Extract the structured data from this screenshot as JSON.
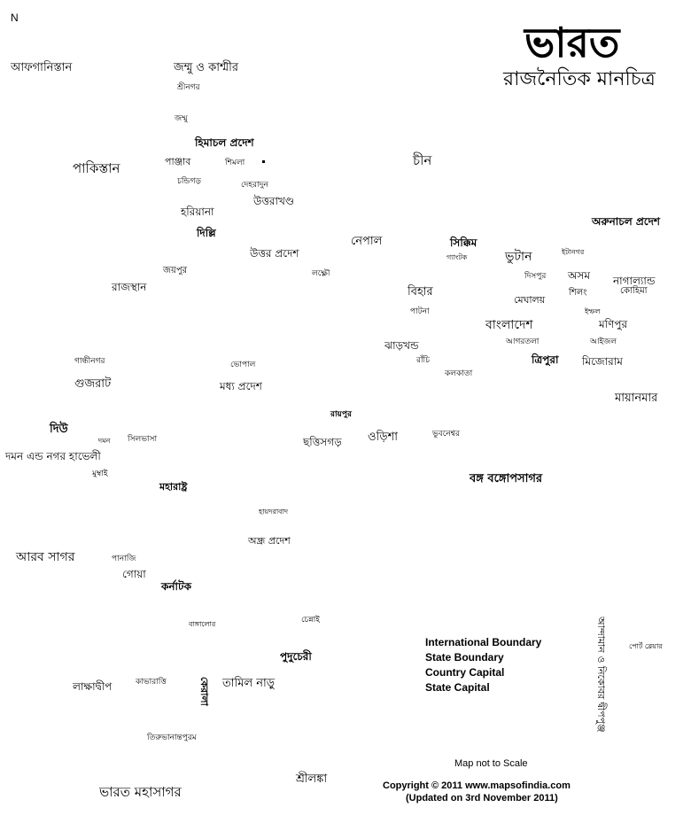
{
  "compass": "N",
  "title": "ভারত",
  "subtitle": "রাজনৈতিক মানচিত্র",
  "labels": {
    "afghanistan": "আফগানিস্তান",
    "jammu_kashmir": "জম্মু ও কাশ্মীর",
    "srinagar": "শ্রীনগর",
    "jammu": "জম্মু",
    "himachal": "হিমাচল প্রদেশ",
    "pakistan": "পাকিস্তান",
    "punjab": "পাঞ্জাব",
    "shimla": "শিমলা",
    "china": "চীন",
    "chandigarh": "চন্ডিগড়",
    "dehradun": "দেহরাদুন",
    "uttarakhand": "উত্তরাখণ্ড",
    "haryana": "হরিয়ানা",
    "delhi": "দিল্লি",
    "arunachal": "অরুনাচল প্রদেশ",
    "nepal": "নেপাল",
    "sikkim": "সিক্কিম",
    "up": "উত্তর প্রদেশ",
    "gangtok": "গ্যাংটক",
    "bhutan": "ভুটান",
    "itanagar": "ইটানগর",
    "jaipur": "জয়পুর",
    "lucknow": "লক্ষ্ণৌ",
    "dispur": "দিসপুর",
    "assam": "অসম",
    "nagaland": "নাগাল্যান্ড",
    "rajasthan": "রাজস্থান",
    "bihar": "বিহার",
    "meghalaya": "মেঘালয়",
    "shillong": "শিলং",
    "kohima": "কোহিমা",
    "patna": "পাটনা",
    "imphal": "ইম্ফল",
    "bangladesh": "বাংলাদেশ",
    "manipur": "মণিপুর",
    "agartala": "আগরতলা",
    "aizawl": "আইজল",
    "jharkhand": "ঝাড়খন্ড",
    "gandhinagar": "গান্ধীনগর",
    "bhopal": "ভোপাল",
    "ranchi": "রাঁচি",
    "tripura": "ত্রিপুরা",
    "mizoram": "মিজোরাম",
    "kolkata": "কলকাতা",
    "gujarat": "গুজরাট",
    "mp": "মধ্য প্রদেশ",
    "myanmar": "মায়ানমার",
    "raipur": "রায়পুর",
    "diu": "দিউ",
    "daman": "দমন",
    "silvassa": "সিলভাসা",
    "chhattisgarh": "ছত্তিসগড়",
    "odisha": "ওড়িশা",
    "bhubaneswar": "ভুবনেশ্বর",
    "dnh": "দমন এন্ড নগর হাভেলী",
    "mumbai": "মুম্বাই",
    "bay_of_bengal": "বঙ্গ বঙ্গোপসাগর",
    "maharashtra": "মহারাষ্ট্র",
    "hyderabad": "হায়দরাবাদ",
    "andhra": "অন্ধ্র প্রদেশ",
    "arabian_sea": "আরব সাগর",
    "panaji": "পানাজি",
    "goa": "গোয়া",
    "karnataka": "কর্নাটক",
    "chennai": "চেন্নাই",
    "bangalore": "বাঙ্গালোর",
    "puducherry": "পুদুচেরী",
    "port_blair": "পোর্ট ব্লেয়ার",
    "lakshadweep": "লাক্ষাদ্বীপ",
    "kavaratti": "কাভারাত্তি",
    "tamil_nadu": "তামিল নাড়ু",
    "kerala": "কেরালা",
    "thiruvananthapuram": "তিরুভানান্তপুরম",
    "sri_lanka": "শ্রীলঙ্কা",
    "indian_ocean": "ভারত মহাসাগর",
    "andaman": "আন্দামান ও নিকোবর দ্বীপপুঞ্জ"
  },
  "legend": {
    "items": [
      "International Boundary",
      "State Boundary",
      "Country Capital",
      "State Capital"
    ]
  },
  "scale_note": "Map not to Scale",
  "copyright": "Copyright © 2011 www.mapsofindia.com",
  "updated": "(Updated on 3rd November 2011)"
}
